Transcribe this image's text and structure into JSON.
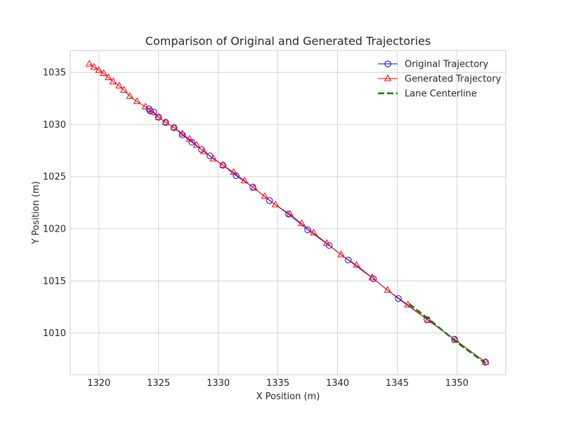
{
  "chart_data": {
    "type": "line",
    "title": "Comparison of Original and Generated Trajectories",
    "xlabel": "X Position (m)",
    "ylabel": "Y Position (m)",
    "xlim": [
      1317.6,
      1354.1
    ],
    "ylim": [
      1006.0,
      1037.1
    ],
    "xticks": [
      1320,
      1325,
      1330,
      1335,
      1340,
      1345,
      1350
    ],
    "yticks": [
      1010,
      1015,
      1020,
      1025,
      1030,
      1035
    ],
    "grid": true,
    "legend_position": "top-right",
    "series": [
      {
        "name": "Original Trajectory",
        "color": "#0000ff",
        "marker": "circle",
        "x": [
          1324.2,
          1324.3,
          1324.6,
          1325.0,
          1325.6,
          1326.3,
          1327.0,
          1327.8,
          1328.6,
          1329.3,
          1330.4,
          1331.5,
          1332.9,
          1334.3,
          1335.9,
          1337.5,
          1339.3,
          1340.9,
          1343.0,
          1345.1,
          1347.5,
          1349.8,
          1352.4
        ],
        "y": [
          1031.5,
          1031.3,
          1031.2,
          1030.7,
          1030.2,
          1029.7,
          1029.0,
          1028.3,
          1027.6,
          1027.0,
          1026.1,
          1025.1,
          1024.0,
          1022.7,
          1021.4,
          1019.9,
          1018.4,
          1017.0,
          1015.2,
          1013.3,
          1011.3,
          1009.4,
          1007.2
        ]
      },
      {
        "name": "Generated Trajectory",
        "color": "#ff0000",
        "marker": "triangle",
        "x": [
          1319.2,
          1319.6,
          1320.0,
          1320.4,
          1320.8,
          1321.2,
          1321.7,
          1322.1,
          1322.6,
          1323.2,
          1323.9,
          1324.4,
          1325.0,
          1325.6,
          1326.3,
          1327.0,
          1327.6,
          1328.2,
          1328.8,
          1329.6,
          1330.4,
          1331.3,
          1332.2,
          1333.0,
          1333.9,
          1334.8,
          1336.0,
          1337.0,
          1338.0,
          1339.1,
          1340.3,
          1341.6,
          1342.9,
          1344.2,
          1345.9,
          1347.6,
          1349.9,
          1352.4
        ],
        "y": [
          1035.8,
          1035.5,
          1035.2,
          1034.9,
          1034.5,
          1034.1,
          1033.7,
          1033.3,
          1032.7,
          1032.2,
          1031.7,
          1031.3,
          1030.7,
          1030.2,
          1029.7,
          1029.1,
          1028.6,
          1028.0,
          1027.4,
          1026.7,
          1026.1,
          1025.4,
          1024.6,
          1023.9,
          1023.1,
          1022.3,
          1021.4,
          1020.5,
          1019.6,
          1018.6,
          1017.5,
          1016.5,
          1015.3,
          1014.1,
          1012.7,
          1011.2,
          1009.3,
          1007.2
        ]
      },
      {
        "name": "Lane Centerline",
        "color": "#008000",
        "marker": "none",
        "dash": "dashed",
        "x": [
          1346.0,
          1348.0,
          1350.0,
          1352.4
        ],
        "y": [
          1012.8,
          1011.0,
          1009.1,
          1007.1
        ]
      }
    ]
  }
}
